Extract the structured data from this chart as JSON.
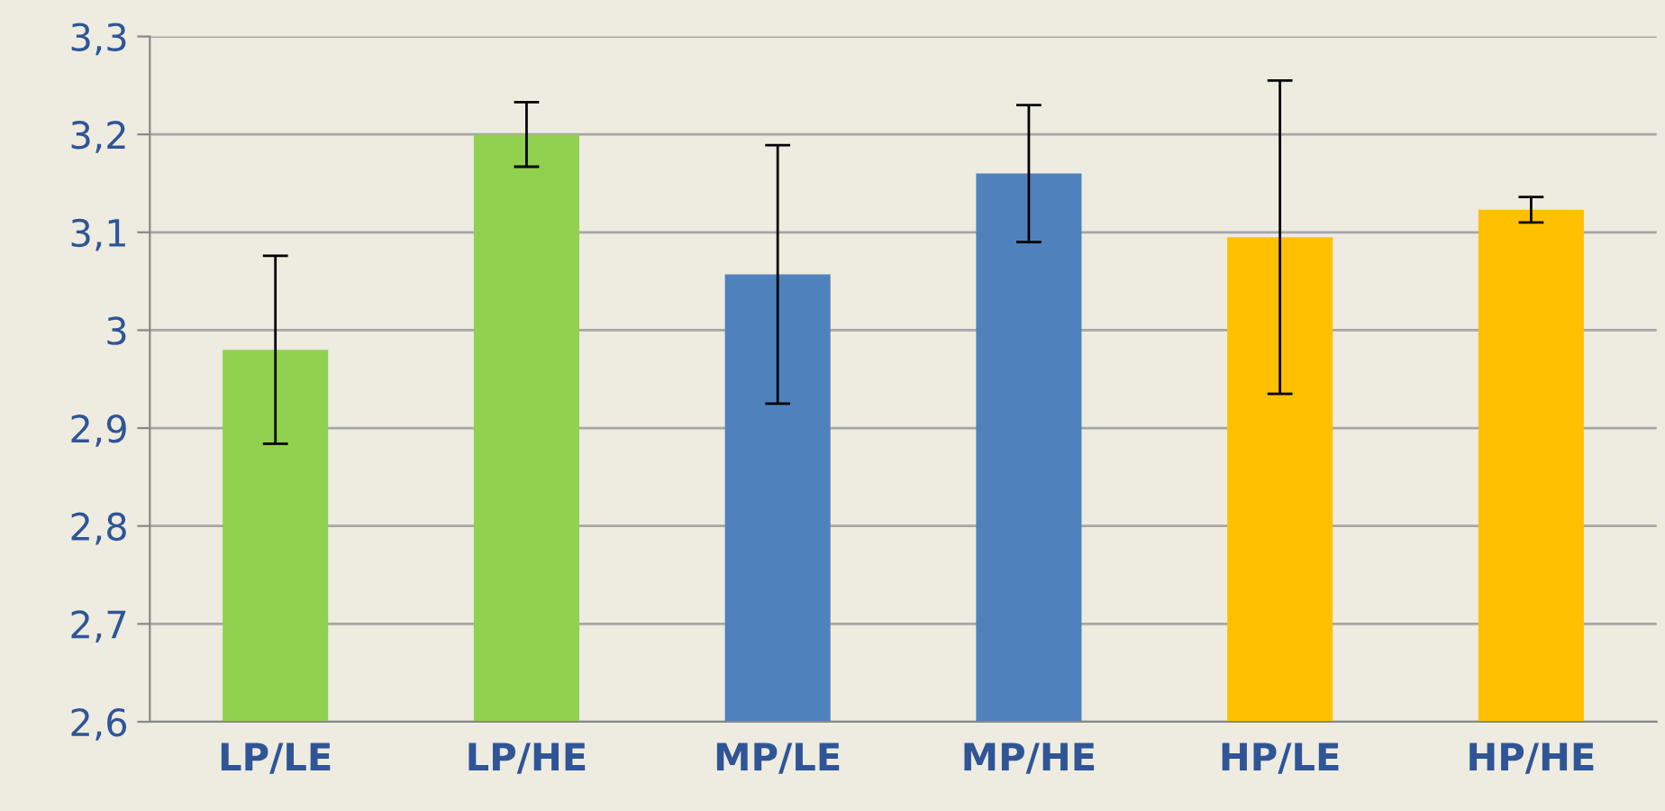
{
  "chart_data": {
    "type": "bar",
    "categories": [
      "LP/LE",
      "LP/HE",
      "MP/LE",
      "MP/HE",
      "HP/LE",
      "HP/HE"
    ],
    "values": [
      2.98,
      3.2,
      3.057,
      3.16,
      3.095,
      3.123
    ],
    "colors": [
      "#92d050",
      "#92d050",
      "#4f81bd",
      "#4f81bd",
      "#ffc000",
      "#ffc000"
    ],
    "errors": [
      0.096,
      0.033,
      0.132,
      0.07,
      0.16,
      0.013
    ],
    "ylim": [
      2.6,
      3.3
    ],
    "yticks": [
      {
        "value": 2.6,
        "label": "2,6"
      },
      {
        "value": 2.7,
        "label": "2,7"
      },
      {
        "value": 2.8,
        "label": "2,8"
      },
      {
        "value": 2.9,
        "label": "2,9"
      },
      3,
      {
        "value": 3.1,
        "label": "3,1"
      },
      {
        "value": 3.2,
        "label": "3,2"
      },
      {
        "value": 3.3,
        "label": "3,3"
      }
    ],
    "grid": "y"
  }
}
